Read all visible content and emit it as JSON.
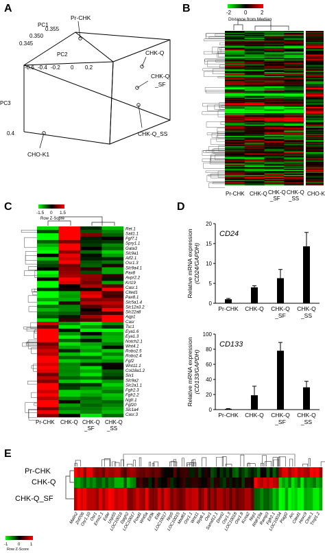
{
  "panels": {
    "A": {
      "letter": "A",
      "axes": [
        "PC1",
        "PC2",
        "PC3"
      ],
      "pc1_ticks": [
        "0.355",
        "0.350",
        "0.345"
      ],
      "pc2_ticks": [
        "-0.6",
        "-0.4",
        "-0.2",
        "0",
        "0.2"
      ],
      "pc3_tick": "0.4",
      "points": [
        "Pr-CHK",
        "CHK-Q",
        "CHK-Q\n_SF",
        "CHK-Q_SS",
        "CHO-K1"
      ]
    },
    "B": {
      "letter": "B",
      "legend_ticks": [
        "-2",
        "0",
        "2"
      ],
      "legend_title": "Distance from Median",
      "columns": [
        "Pr-CHK",
        "CHK-Q",
        "CHK-Q\n_SF",
        "CHK-Q\n_SS",
        "CHO-K1"
      ]
    },
    "C": {
      "letter": "C",
      "legend_ticks": [
        "-1.5",
        "0",
        "1.5"
      ],
      "legend_title": "Row Z-Score",
      "genes": [
        "Ret.1",
        "Sall1.1",
        "Fgf7.1",
        "Spry1.1",
        "Gata3",
        "Slc9a1",
        "Atf2.1",
        "Osr1.3",
        "Slc9a4.1",
        "Pax8",
        "Avpr2.2",
        "Krt19",
        "Casr.1",
        "Cited1",
        "Pax8.1",
        "Slc5a1.4",
        "Slc12a3.2",
        "Slc22a8",
        "Aqp1",
        "Casr",
        "Tsc1",
        "Eya1.6",
        "Eya1.3",
        "Notch2.1",
        "Wnt4.1",
        "Robo2.5",
        "Robo2.4",
        "Fgf2",
        "Wnt11.1",
        "Col18a1.2",
        "Six1",
        "Slc9a2",
        "Slc2a1.1",
        "Fgfr2.3",
        "Fgfr2.2",
        "Ngfr.1",
        "Fgf20",
        "Slc1a4",
        "Casr.3"
      ],
      "columns": [
        "Pr-CHK",
        "CHK-Q",
        "CHK-Q\n_SF",
        "CHK-Q\n_SS"
      ]
    },
    "D": {
      "letter": "D",
      "chart_data": [
        {
          "type": "bar",
          "title": "CD24",
          "ylabel": "Relative mRNA expression",
          "ylabel2": "(CD24/GAPDH)",
          "categories": [
            "Pr-CHK",
            "CHK-Q",
            "CHK-Q\n_SF",
            "CHK-Q\n_SS"
          ],
          "values": [
            1.0,
            4.0,
            6.3,
            14.3
          ],
          "errors": [
            0.2,
            0.4,
            2.2,
            3.5
          ],
          "ylim": [
            0,
            20
          ],
          "yticks": [
            "0",
            "5",
            "10",
            "15",
            "20"
          ],
          "color": "#000000"
        },
        {
          "type": "bar",
          "title": "CD133",
          "ylabel": "Relative mRNA expression",
          "ylabel2": "(CD133/GAPDH)",
          "categories": [
            "Pr-CHK",
            "CHK-Q",
            "CHK-Q\n_SF",
            "CHK-Q\n_SS"
          ],
          "values": [
            1.0,
            19.0,
            78.0,
            29.5
          ],
          "errors": [
            0.3,
            12.0,
            11.0,
            8.0
          ],
          "ylim": [
            0,
            100
          ],
          "yticks": [
            "0",
            "20",
            "40",
            "60",
            "80",
            "100"
          ],
          "color": "#000000"
        }
      ]
    },
    "E": {
      "letter": "E",
      "rows": [
        "Pr-CHK",
        "CHK-Q",
        "CHK-Q_SF"
      ],
      "legend_ticks": [
        "-1",
        "0",
        "1"
      ],
      "legend_title": "Row Z-Score",
      "genes": [
        "Malin2",
        "Znf706",
        "Osr1.10",
        "Osr1",
        "Emx2.1",
        "Edar",
        "Usp55",
        "LOC10016",
        "Dpgh2",
        "LOC10017",
        "Foxd1",
        "Wnt5a",
        "Eif3k",
        "Eda",
        "LOC10017",
        "Nrp5",
        "LOC10015",
        "Mxd61",
        "Osr1.1",
        "Wnt11",
        "Nrp8.1",
        "Osr1",
        "Samd12.1",
        "Dmrt2",
        "Osr1.3",
        "LOC10018",
        "Osr1.8",
        "Kcna2",
        "Nrp1",
        "RNF19a",
        "Ramp3",
        "Fgfr2.1",
        "LOC10034",
        "Plagl2",
        "Arc",
        "Cited1",
        "Hoxc9",
        "Ctnn.1",
        "Tmp1.2"
      ]
    }
  }
}
